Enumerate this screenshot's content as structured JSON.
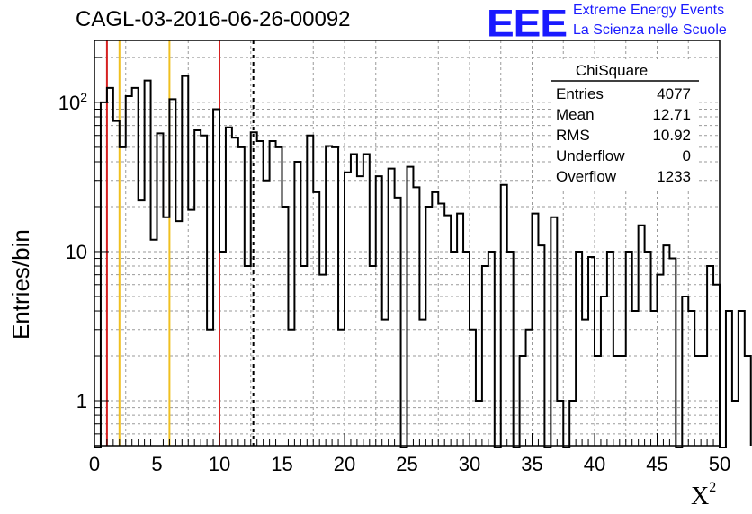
{
  "title": "CAGL-03-2016-06-26-00092",
  "logo": {
    "mark": "EEE",
    "line1": "Extreme Energy Events",
    "line2": "La Scienza nelle Scuole",
    "color": "#1a1aff"
  },
  "ylabel": "Entries/bin",
  "xlabel_base": "X",
  "xlabel_sup": "2",
  "stats": {
    "title": "ChiSquare",
    "rows": [
      {
        "label": "Entries",
        "value": "4077"
      },
      {
        "label": "Mean",
        "value": "12.71"
      },
      {
        "label": "RMS",
        "value": "10.92"
      },
      {
        "label": "Underflow",
        "value": "0"
      },
      {
        "label": "Overflow",
        "value": "1233"
      }
    ]
  },
  "chart_data": {
    "type": "bar",
    "histogram": "step",
    "bin_width": 0.5,
    "xlim": [
      0,
      50
    ],
    "ylim": [
      0.5,
      260
    ],
    "ylog": true,
    "grid": true,
    "x_ticks": [
      0,
      5,
      10,
      15,
      20,
      25,
      30,
      35,
      40,
      45,
      50
    ],
    "x_tick_labels": [
      "0",
      "5",
      "10",
      "15",
      "20",
      "25",
      "30",
      "35",
      "40",
      "45",
      "50"
    ],
    "y_ticks": [
      1,
      10,
      100
    ],
    "y_tick_labels": [
      "1",
      "10",
      "10²"
    ],
    "values": [
      0,
      100,
      125,
      75,
      50,
      110,
      125,
      22,
      140,
      12,
      62,
      17,
      105,
      16,
      150,
      19,
      65,
      60,
      3,
      90,
      10,
      68,
      58,
      50,
      8,
      63,
      55,
      30,
      55,
      50,
      20,
      3,
      40,
      8,
      60,
      25,
      7,
      51,
      50,
      3,
      34,
      45,
      32,
      45,
      8,
      32,
      3.5,
      36,
      23,
      0.01,
      37,
      27,
      3.5,
      20,
      25,
      21,
      17.5,
      10,
      18,
      10,
      3,
      1,
      8,
      10,
      0.01,
      28,
      10,
      0.01,
      2,
      3,
      18,
      11,
      0.01,
      17,
      1,
      0.01,
      1,
      10,
      3.5,
      9.2,
      2,
      5,
      10,
      2,
      2,
      10,
      4,
      15,
      10,
      4,
      7,
      11,
      9,
      0.01,
      5,
      4,
      2,
      2,
      8,
      6,
      0.01,
      4,
      1,
      4,
      2
    ],
    "values_note_ignored": true,
    "series": [
      {
        "name": "ChiSquare",
        "color": "#000000"
      }
    ],
    "vlines": [
      {
        "x": 1,
        "color": "#d62020",
        "style": "solid"
      },
      {
        "x": 2,
        "color": "#f0c020",
        "style": "solid"
      },
      {
        "x": 6,
        "color": "#f0c020",
        "style": "solid"
      },
      {
        "x": 10,
        "color": "#d62020",
        "style": "solid"
      },
      {
        "x": 12.71,
        "color": "#000000",
        "style": "dashed"
      }
    ]
  }
}
